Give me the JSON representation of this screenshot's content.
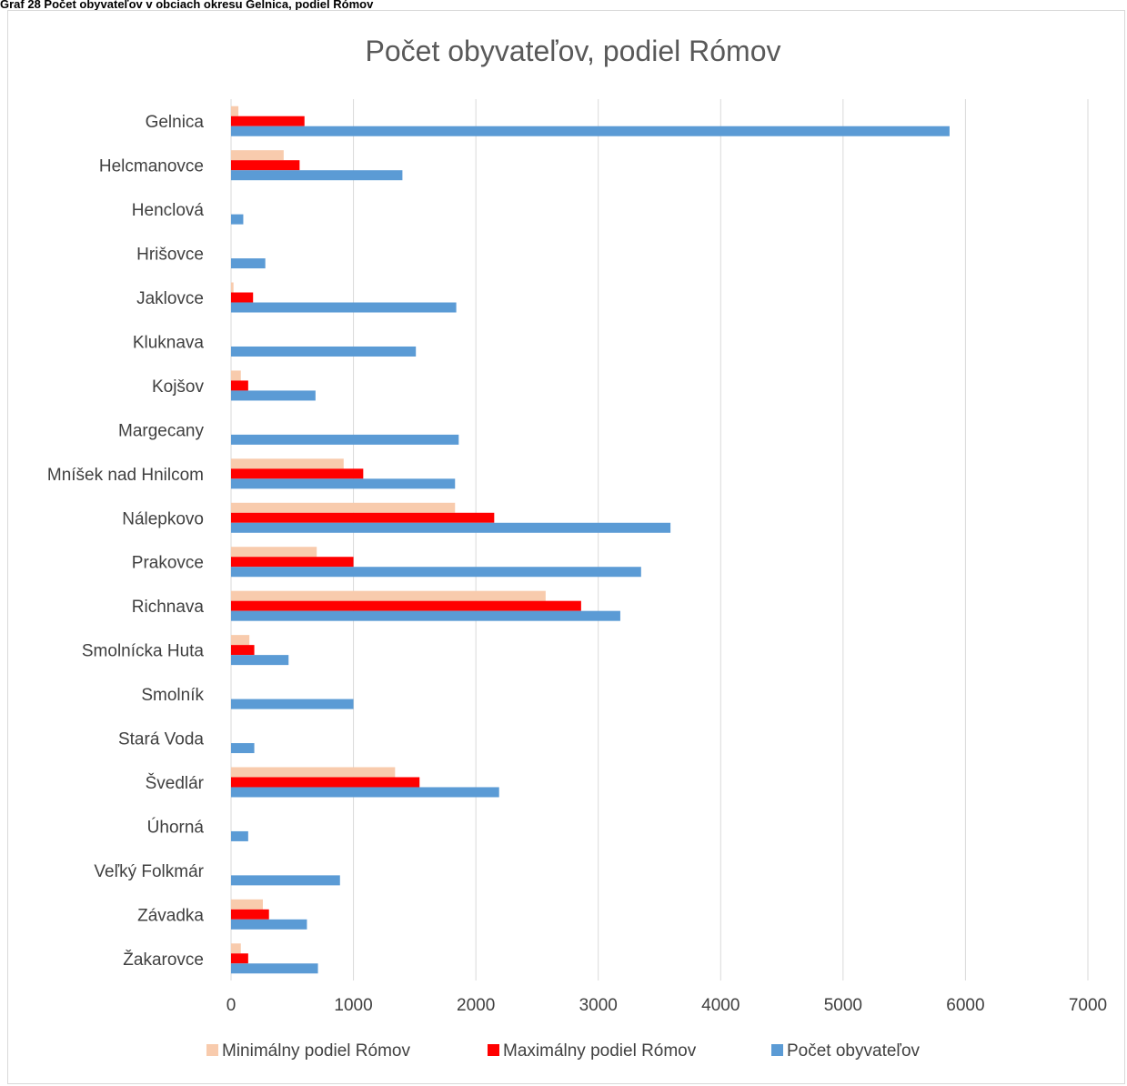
{
  "page": {
    "caption": "Graf 28 Počet obyvateľov v obciach okresu Gelnica, podiel Rómov"
  },
  "chart_data": {
    "type": "bar",
    "orientation": "horizontal",
    "title": "Počet obyvateľov, podiel Rómov",
    "xlabel": "",
    "ylabel": "",
    "xlim": [
      0,
      7000
    ],
    "x_ticks": [
      "0",
      "1000",
      "2000",
      "3000",
      "4000",
      "5000",
      "6000",
      "7000"
    ],
    "grid": "vertical",
    "legend_position": "bottom",
    "categories": [
      "Gelnica",
      "Helcmanovce",
      "Henclová",
      "Hrišovce",
      "Jaklovce",
      "Kluknava",
      "Kojšov",
      "Margecany",
      "Mníšek nad Hnilcom",
      "Nálepkovo",
      "Prakovce",
      "Richnava",
      "Smolnícka Huta",
      "Smolník",
      "Stará Voda",
      "Švedlár",
      "Úhorná",
      "Veľký Folkmár",
      "Závadka",
      "Žakarovce"
    ],
    "series": [
      {
        "name": "Minimálny podiel Rómov",
        "color": "#f8cbad",
        "values": [
          60,
          430,
          0,
          0,
          20,
          0,
          80,
          0,
          920,
          1830,
          700,
          2570,
          150,
          0,
          0,
          1340,
          0,
          0,
          260,
          80
        ]
      },
      {
        "name": "Maximálny podiel Rómov",
        "color": "#ff0000",
        "values": [
          600,
          560,
          0,
          0,
          180,
          0,
          140,
          0,
          1080,
          2150,
          1000,
          2860,
          190,
          0,
          0,
          1540,
          0,
          0,
          310,
          140
        ]
      },
      {
        "name": "Počet obyvateľov",
        "color": "#5b9bd5",
        "values": [
          5870,
          1400,
          100,
          280,
          1840,
          1510,
          690,
          1860,
          1830,
          3590,
          3350,
          3180,
          470,
          1000,
          190,
          2190,
          140,
          890,
          620,
          710
        ]
      }
    ]
  }
}
